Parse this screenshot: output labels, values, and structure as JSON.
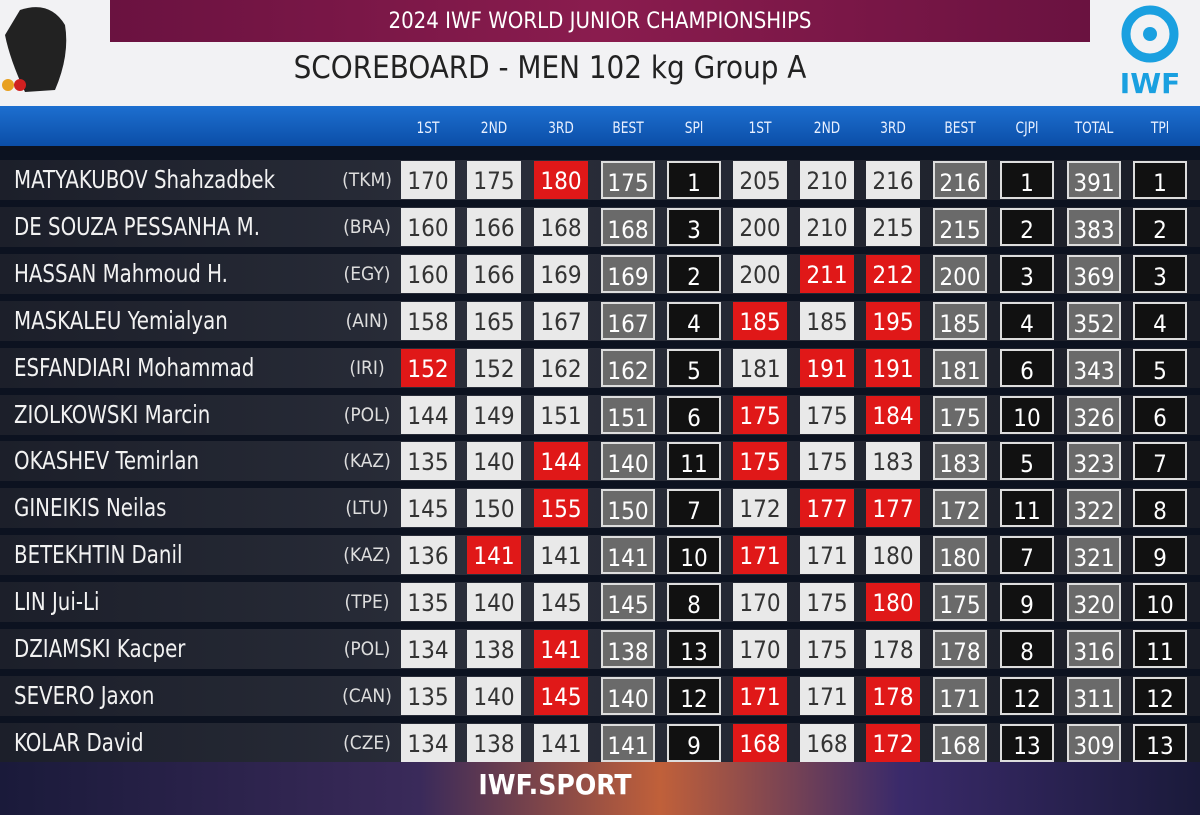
{
  "header": {
    "event": "2024 IWF WORLD JUNIOR CHAMPIONSHIPS",
    "title": "SCOREBOARD - MEN 102 kg Group A",
    "logo_text": "IWF"
  },
  "columns": [
    "1ST",
    "2ND",
    "3RD",
    "BEST",
    "SPl",
    "1ST",
    "2ND",
    "3RD",
    "BEST",
    "CJPl",
    "TOTAL",
    "TPl"
  ],
  "rows": [
    {
      "name": "MATYAKUBOV Shahzadbek",
      "nation": "(TKM)",
      "snatch": [
        170,
        175,
        180
      ],
      "snatch_no_lift": [
        false,
        false,
        true
      ],
      "snatch_best": 175,
      "snatch_rank": 1,
      "cj": [
        205,
        210,
        216
      ],
      "cj_no_lift": [
        false,
        false,
        false
      ],
      "cj_best": 216,
      "cj_rank": 1,
      "total": 391,
      "rank": 1
    },
    {
      "name": "DE SOUZA PESSANHA M.",
      "nation": "(BRA)",
      "snatch": [
        160,
        166,
        168
      ],
      "snatch_no_lift": [
        false,
        false,
        false
      ],
      "snatch_best": 168,
      "snatch_rank": 3,
      "cj": [
        200,
        210,
        215
      ],
      "cj_no_lift": [
        false,
        false,
        false
      ],
      "cj_best": 215,
      "cj_rank": 2,
      "total": 383,
      "rank": 2
    },
    {
      "name": "HASSAN Mahmoud H.",
      "nation": "(EGY)",
      "snatch": [
        160,
        166,
        169
      ],
      "snatch_no_lift": [
        false,
        false,
        false
      ],
      "snatch_best": 169,
      "snatch_rank": 2,
      "cj": [
        200,
        211,
        212
      ],
      "cj_no_lift": [
        false,
        true,
        true
      ],
      "cj_best": 200,
      "cj_rank": 3,
      "total": 369,
      "rank": 3
    },
    {
      "name": "MASKALEU Yemialyan",
      "nation": "(AIN)",
      "snatch": [
        158,
        165,
        167
      ],
      "snatch_no_lift": [
        false,
        false,
        false
      ],
      "snatch_best": 167,
      "snatch_rank": 4,
      "cj": [
        185,
        185,
        195
      ],
      "cj_no_lift": [
        true,
        false,
        true
      ],
      "cj_best": 185,
      "cj_rank": 4,
      "total": 352,
      "rank": 4
    },
    {
      "name": "ESFANDIARI Mohammad",
      "nation": "(IRI)",
      "snatch": [
        152,
        152,
        162
      ],
      "snatch_no_lift": [
        true,
        false,
        false
      ],
      "snatch_best": 162,
      "snatch_rank": 5,
      "cj": [
        181,
        191,
        191
      ],
      "cj_no_lift": [
        false,
        true,
        true
      ],
      "cj_best": 181,
      "cj_rank": 6,
      "total": 343,
      "rank": 5
    },
    {
      "name": "ZIOLKOWSKI Marcin",
      "nation": "(POL)",
      "snatch": [
        144,
        149,
        151
      ],
      "snatch_no_lift": [
        false,
        false,
        false
      ],
      "snatch_best": 151,
      "snatch_rank": 6,
      "cj": [
        175,
        175,
        184
      ],
      "cj_no_lift": [
        true,
        false,
        true
      ],
      "cj_best": 175,
      "cj_rank": 10,
      "total": 326,
      "rank": 6
    },
    {
      "name": "OKASHEV Temirlan",
      "nation": "(KAZ)",
      "snatch": [
        135,
        140,
        144
      ],
      "snatch_no_lift": [
        false,
        false,
        true
      ],
      "snatch_best": 140,
      "snatch_rank": 11,
      "cj": [
        175,
        175,
        183
      ],
      "cj_no_lift": [
        true,
        false,
        false
      ],
      "cj_best": 183,
      "cj_rank": 5,
      "total": 323,
      "rank": 7
    },
    {
      "name": "GINEIKIS Neilas",
      "nation": "(LTU)",
      "snatch": [
        145,
        150,
        155
      ],
      "snatch_no_lift": [
        false,
        false,
        true
      ],
      "snatch_best": 150,
      "snatch_rank": 7,
      "cj": [
        172,
        177,
        177
      ],
      "cj_no_lift": [
        false,
        true,
        true
      ],
      "cj_best": 172,
      "cj_rank": 11,
      "total": 322,
      "rank": 8
    },
    {
      "name": "BETEKHTIN Danil",
      "nation": "(KAZ)",
      "snatch": [
        136,
        141,
        141
      ],
      "snatch_no_lift": [
        false,
        true,
        false
      ],
      "snatch_best": 141,
      "snatch_rank": 10,
      "cj": [
        171,
        171,
        180
      ],
      "cj_no_lift": [
        true,
        false,
        false
      ],
      "cj_best": 180,
      "cj_rank": 7,
      "total": 321,
      "rank": 9
    },
    {
      "name": "LIN Jui-Li",
      "nation": "(TPE)",
      "snatch": [
        135,
        140,
        145
      ],
      "snatch_no_lift": [
        false,
        false,
        false
      ],
      "snatch_best": 145,
      "snatch_rank": 8,
      "cj": [
        170,
        175,
        180
      ],
      "cj_no_lift": [
        false,
        false,
        true
      ],
      "cj_best": 175,
      "cj_rank": 9,
      "total": 320,
      "rank": 10
    },
    {
      "name": "DZIAMSKI Kacper",
      "nation": "(POL)",
      "snatch": [
        134,
        138,
        141
      ],
      "snatch_no_lift": [
        false,
        false,
        true
      ],
      "snatch_best": 138,
      "snatch_rank": 13,
      "cj": [
        170,
        175,
        178
      ],
      "cj_no_lift": [
        false,
        false,
        false
      ],
      "cj_best": 178,
      "cj_rank": 8,
      "total": 316,
      "rank": 11
    },
    {
      "name": "SEVERO Jaxon",
      "nation": "(CAN)",
      "snatch": [
        135,
        140,
        145
      ],
      "snatch_no_lift": [
        false,
        false,
        true
      ],
      "snatch_best": 140,
      "snatch_rank": 12,
      "cj": [
        171,
        171,
        178
      ],
      "cj_no_lift": [
        true,
        false,
        true
      ],
      "cj_best": 171,
      "cj_rank": 12,
      "total": 311,
      "rank": 12
    },
    {
      "name": "KOLAR David",
      "nation": "(CZE)",
      "snatch": [
        134,
        138,
        141
      ],
      "snatch_no_lift": [
        false,
        false,
        false
      ],
      "snatch_best": 141,
      "snatch_rank": 9,
      "cj": [
        168,
        168,
        172
      ],
      "cj_no_lift": [
        true,
        false,
        true
      ],
      "cj_best": 168,
      "cj_rank": 13,
      "total": 309,
      "rank": 13
    }
  ],
  "footer": "IWF.SPORT"
}
